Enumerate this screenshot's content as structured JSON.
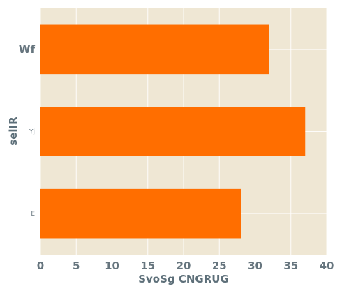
{
  "chart_data": {
    "type": "bar",
    "orientation": "horizontal",
    "categories": [
      "Wf",
      "Yj",
      "E"
    ],
    "values": [
      32,
      37,
      28
    ],
    "title": "",
    "xlabel": "SvoSg CNGRUG",
    "ylabel": "selIR",
    "xlim": [
      0,
      40
    ],
    "xticks": [
      "0",
      "5",
      "10",
      "15",
      "20",
      "25",
      "30",
      "35",
      "40"
    ],
    "grid": true,
    "legend": "none",
    "colors": {
      "bar": "#ff6e00",
      "plot_background": "#efe7d4",
      "grid": "#ffffff",
      "text": "#66757e"
    }
  }
}
